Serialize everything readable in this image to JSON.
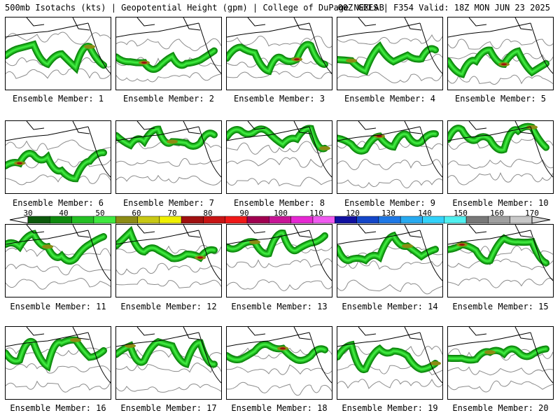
{
  "header": {
    "left_text": "500mb Isotachs (kts) | Geopotential Height (gpm) | College of DuPage NEXLAB",
    "right_text": "00Z GEFS | F354 Valid: 18Z MON JUN 23 2025"
  },
  "colorbar": {
    "labels": [
      "30",
      "40",
      "50",
      "60",
      "70",
      "80",
      "90",
      "100",
      "110",
      "120",
      "130",
      "140",
      "150",
      "160",
      "170"
    ],
    "colors": [
      "#0b5a0b",
      "#0e8a0e",
      "#23bf23",
      "#3fe83f",
      "#8c8c14",
      "#c8c814",
      "#f0f000",
      "#a01010",
      "#c81414",
      "#f01818",
      "#a00050",
      "#c81496",
      "#e628d2",
      "#f05af0",
      "#1010a0",
      "#1446c8",
      "#1e78e6",
      "#28aaf0",
      "#32d2fa",
      "#50f0f0",
      "#787878",
      "#a0a0a0",
      "#c8c8c8"
    ]
  },
  "panels": [
    {
      "label": "Ensemble Member: 1"
    },
    {
      "label": "Ensemble Member: 2"
    },
    {
      "label": "Ensemble Member: 3"
    },
    {
      "label": "Ensemble Member: 4"
    },
    {
      "label": "Ensemble Member: 5"
    },
    {
      "label": "Ensemble Member: 6"
    },
    {
      "label": "Ensemble Member: 7"
    },
    {
      "label": "Ensemble Member: 8"
    },
    {
      "label": "Ensemble Member: 9"
    },
    {
      "label": "Ensemble Member: 10"
    },
    {
      "label": "Ensemble Member: 11"
    },
    {
      "label": "Ensemble Member: 12"
    },
    {
      "label": "Ensemble Member: 13"
    },
    {
      "label": "Ensemble Member: 14"
    },
    {
      "label": "Ensemble Member: 15"
    },
    {
      "label": "Ensemble Member: 16"
    },
    {
      "label": "Ensemble Member: 17"
    },
    {
      "label": "Ensemble Member: 18"
    },
    {
      "label": "Ensemble Member: 19"
    },
    {
      "label": "Ensemble Member: 20"
    }
  ]
}
